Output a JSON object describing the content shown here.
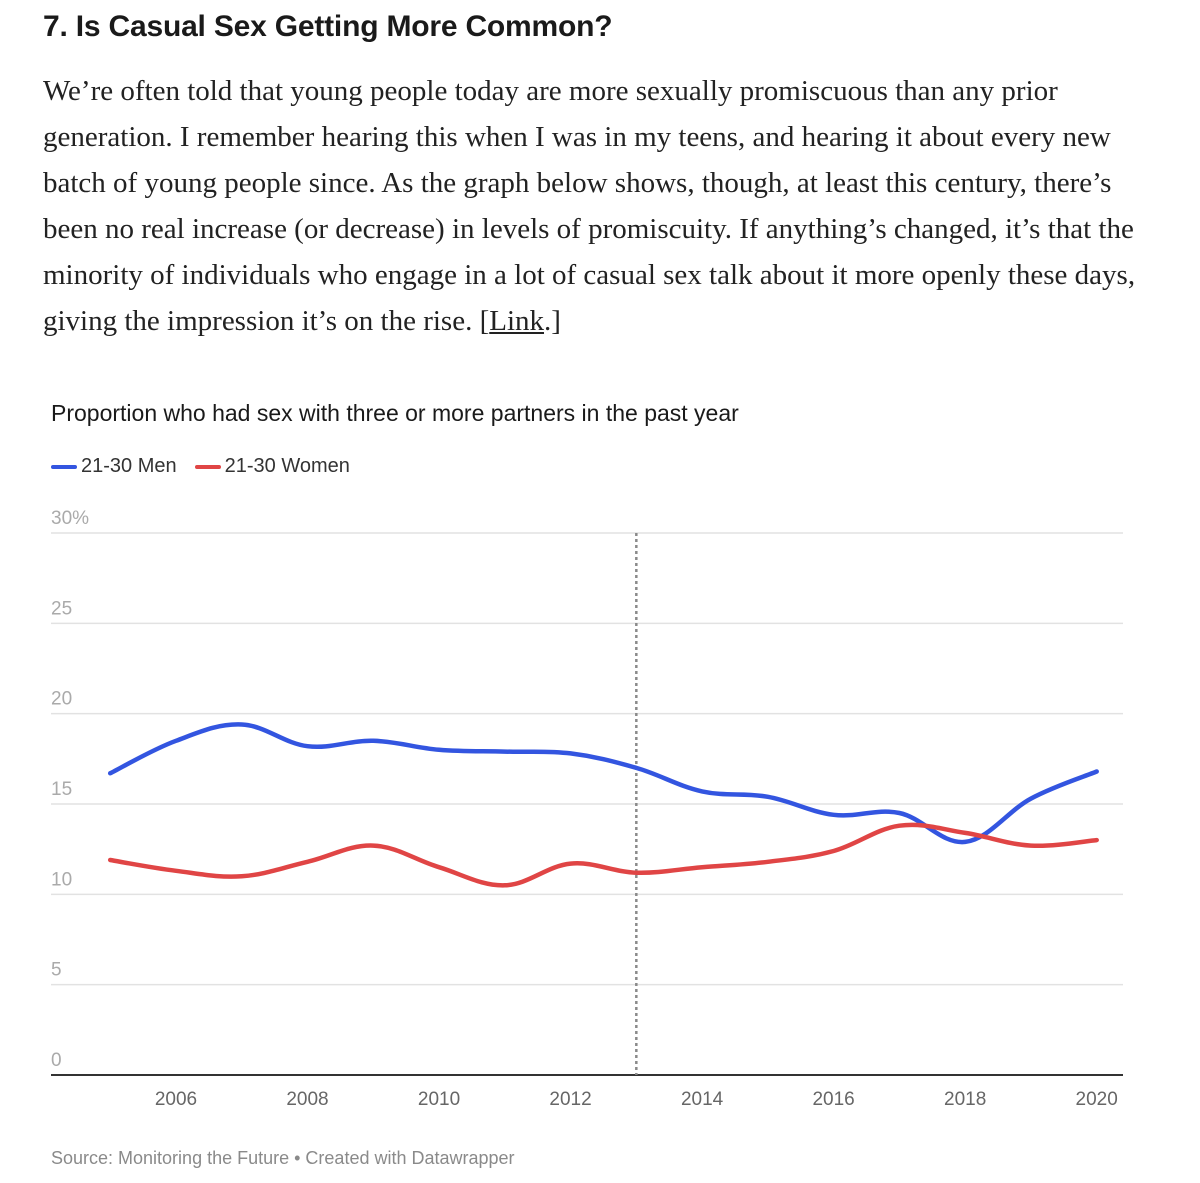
{
  "article": {
    "heading": "7. Is Casual Sex Getting More Common?",
    "paragraph_text": "We’re often told that young people today are more sexually promiscuous than any prior generation. I remember hearing this when I was in my teens, and hearing it about every new batch of young people since. As the graph below shows, though, at least this century, there’s been no real increase (or decrease) in levels of promiscuity. If anything’s changed, it’s that the minority of individuals who engage in a lot of casual sex talk about it more openly these days, giving the impression it’s on the rise. [",
    "link_text": "Link",
    "paragraph_end": ".]"
  },
  "chart_data": {
    "type": "line",
    "title": "Proportion who had sex with three or more partners in the past year",
    "x": [
      2005,
      2006,
      2007,
      2008,
      2009,
      2010,
      2011,
      2012,
      2013,
      2014,
      2015,
      2016,
      2017,
      2018,
      2019,
      2020
    ],
    "series": [
      {
        "name": "21-30 Men",
        "color": "#3355e0",
        "values": [
          16.7,
          18.5,
          19.4,
          18.2,
          18.5,
          18.0,
          17.9,
          17.8,
          17.0,
          15.7,
          15.4,
          14.4,
          14.5,
          12.9,
          15.3,
          16.8
        ]
      },
      {
        "name": "21-30 Women",
        "color": "#e04545",
        "values": [
          11.9,
          11.3,
          11.0,
          11.8,
          12.7,
          11.5,
          10.5,
          11.7,
          11.2,
          11.5,
          11.8,
          12.4,
          13.8,
          13.4,
          12.7,
          13.0
        ]
      }
    ],
    "y_ticks": [
      "30%",
      "25",
      "20",
      "15",
      "10",
      "5",
      "0"
    ],
    "x_ticks": [
      "2006",
      "2008",
      "2010",
      "2012",
      "2014",
      "2016",
      "2018",
      "2020"
    ],
    "ylim": [
      0,
      30
    ],
    "xlim": [
      2004.1,
      2020.4
    ],
    "grid": true,
    "reference_line_x": 2013,
    "legend_position": "top-left",
    "source": "Source: Monitoring the Future • Created with Datawrapper"
  }
}
